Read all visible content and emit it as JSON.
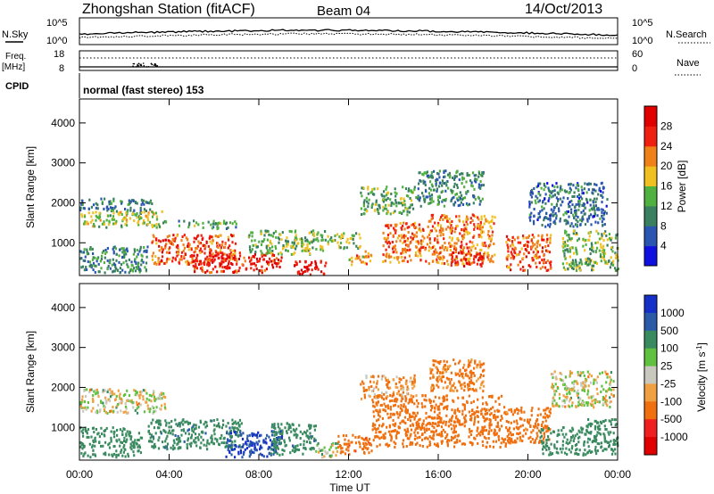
{
  "header": {
    "station_title": "Zhongshan Station (fitACF)",
    "beam_label": "Beam 04",
    "date_label": "14/Oct/2013"
  },
  "noise_panel": {
    "left_label": "N.Sky",
    "left_ticks": [
      "10^5",
      "10^0"
    ],
    "right_label": "N.Search",
    "right_ticks": [
      "10^5",
      "10^0"
    ]
  },
  "freq_panel": {
    "left_label_1": "Freq.",
    "left_label_2": "[MHz]",
    "left_ticks": [
      "18",
      "8"
    ],
    "right_label": "Nave",
    "right_ticks": [
      "60",
      "0"
    ]
  },
  "cpid": {
    "label": "CPID",
    "value": "normal (fast stereo) 153"
  },
  "axes": {
    "x_ticks": [
      "00:00",
      "04:00",
      "08:00",
      "12:00",
      "16:00",
      "20:00",
      "00:00"
    ],
    "x_label": "Time UT",
    "y_ticks": [
      "1000",
      "2000",
      "3000",
      "4000"
    ],
    "y_label": "Slant Range [km]"
  },
  "power_scale": {
    "label": "Power [dB]",
    "ticks": [
      "4",
      "8",
      "12",
      "16",
      "20",
      "24",
      "28"
    ],
    "colors": [
      "#1010e0",
      "#2a55b0",
      "#3a8060",
      "#50b040",
      "#f0c020",
      "#f08018",
      "#f02010",
      "#e00000"
    ]
  },
  "velocity_scale": {
    "label": "Velocity [m s",
    "label_superscript": "-1",
    "label_close": "]",
    "ticks": [
      "1000",
      "500",
      "100",
      "25",
      "-25",
      "-100",
      "-500",
      "-1000"
    ],
    "colors": [
      "#1530c8",
      "#2a5aa8",
      "#3a8a60",
      "#60c040",
      "#c8c8be",
      "#f0a040",
      "#f07010",
      "#f02020",
      "#e00000"
    ]
  },
  "chart_data": [
    {
      "type": "heatmap",
      "name": "power",
      "title": "",
      "xlabel": "Time UT",
      "ylabel": "Slant Range [km]",
      "xlim": [
        0,
        24
      ],
      "ylim": [
        180,
        4600
      ],
      "colorbar": {
        "label": "Power [dB]",
        "min": 0,
        "max": 32
      },
      "regions": [
        {
          "t": [
            0.0,
            3.7
          ],
          "r": [
            1380,
            1780
          ],
          "value": 16
        },
        {
          "t": [
            0.0,
            3.2
          ],
          "r": [
            1780,
            2100
          ],
          "value": 9
        },
        {
          "t": [
            3.7,
            7.0
          ],
          "r": [
            1350,
            1550
          ],
          "value": 12
        },
        {
          "t": [
            0.0,
            3.0
          ],
          "r": [
            250,
            900
          ],
          "value": 10
        },
        {
          "t": [
            3.2,
            7.0
          ],
          "r": [
            450,
            1200
          ],
          "value": 24
        },
        {
          "t": [
            5.0,
            9.0
          ],
          "r": [
            250,
            750
          ],
          "value": 27
        },
        {
          "t": [
            9.5,
            11.0
          ],
          "r": [
            200,
            550
          ],
          "value": 29
        },
        {
          "t": [
            7.5,
            11.0
          ],
          "r": [
            700,
            1300
          ],
          "value": 14
        },
        {
          "t": [
            11.0,
            12.5
          ],
          "r": [
            850,
            1250
          ],
          "value": 15
        },
        {
          "t": [
            12.0,
            13.0
          ],
          "r": [
            450,
            800
          ],
          "value": 20
        },
        {
          "t": [
            13.5,
            15.5
          ],
          "r": [
            500,
            1500
          ],
          "value": 23
        },
        {
          "t": [
            15.5,
            18.5
          ],
          "r": [
            450,
            1700
          ],
          "value": 22
        },
        {
          "t": [
            16.5,
            18.0
          ],
          "r": [
            400,
            800
          ],
          "value": 28
        },
        {
          "t": [
            19.0,
            21.0
          ],
          "r": [
            300,
            1200
          ],
          "value": 24
        },
        {
          "t": [
            12.5,
            15.0
          ],
          "r": [
            1700,
            2400
          ],
          "value": 13
        },
        {
          "t": [
            15.0,
            18.0
          ],
          "r": [
            1900,
            2800
          ],
          "value": 10
        },
        {
          "t": [
            20.0,
            23.5
          ],
          "r": [
            1400,
            2500
          ],
          "value": 8
        },
        {
          "t": [
            21.5,
            24.0
          ],
          "r": [
            300,
            1300
          ],
          "value": 14
        }
      ]
    },
    {
      "type": "heatmap",
      "name": "velocity",
      "title": "",
      "xlabel": "Time UT",
      "ylabel": "Slant Range [km]",
      "xlim": [
        0,
        24
      ],
      "ylim": [
        180,
        4600
      ],
      "colorbar": {
        "label": "Velocity [m s-1]",
        "ticks": [
          1000,
          500,
          100,
          25,
          -25,
          -100,
          -500,
          -1000
        ]
      },
      "regions": [
        {
          "t": [
            0.0,
            3.8
          ],
          "r": [
            1350,
            1950
          ],
          "value": 0
        },
        {
          "t": [
            0.0,
            2.8
          ],
          "r": [
            250,
            1000
          ],
          "value": 300
        },
        {
          "t": [
            3.0,
            7.2
          ],
          "r": [
            450,
            1200
          ],
          "value": 400
        },
        {
          "t": [
            6.5,
            9.0
          ],
          "r": [
            250,
            900
          ],
          "value": 1000
        },
        {
          "t": [
            8.5,
            10.5
          ],
          "r": [
            300,
            1100
          ],
          "value": 400
        },
        {
          "t": [
            10.5,
            11.5
          ],
          "r": [
            250,
            600
          ],
          "value": 50
        },
        {
          "t": [
            11.5,
            13.0
          ],
          "r": [
            300,
            800
          ],
          "value": -400
        },
        {
          "t": [
            13.0,
            19.0
          ],
          "r": [
            500,
            1800
          ],
          "value": -300
        },
        {
          "t": [
            15.5,
            18.0
          ],
          "r": [
            1900,
            2700
          ],
          "value": -150
        },
        {
          "t": [
            12.5,
            15.0
          ],
          "r": [
            1700,
            2300
          ],
          "value": -100
        },
        {
          "t": [
            19.0,
            21.0
          ],
          "r": [
            600,
            1500
          ],
          "value": -200
        },
        {
          "t": [
            20.5,
            22.5
          ],
          "r": [
            300,
            1000
          ],
          "value": 300
        },
        {
          "t": [
            22.5,
            24.0
          ],
          "r": [
            300,
            1200
          ],
          "value": 250
        },
        {
          "t": [
            21.0,
            23.8
          ],
          "r": [
            1500,
            2400
          ],
          "value": 0
        }
      ]
    }
  ]
}
